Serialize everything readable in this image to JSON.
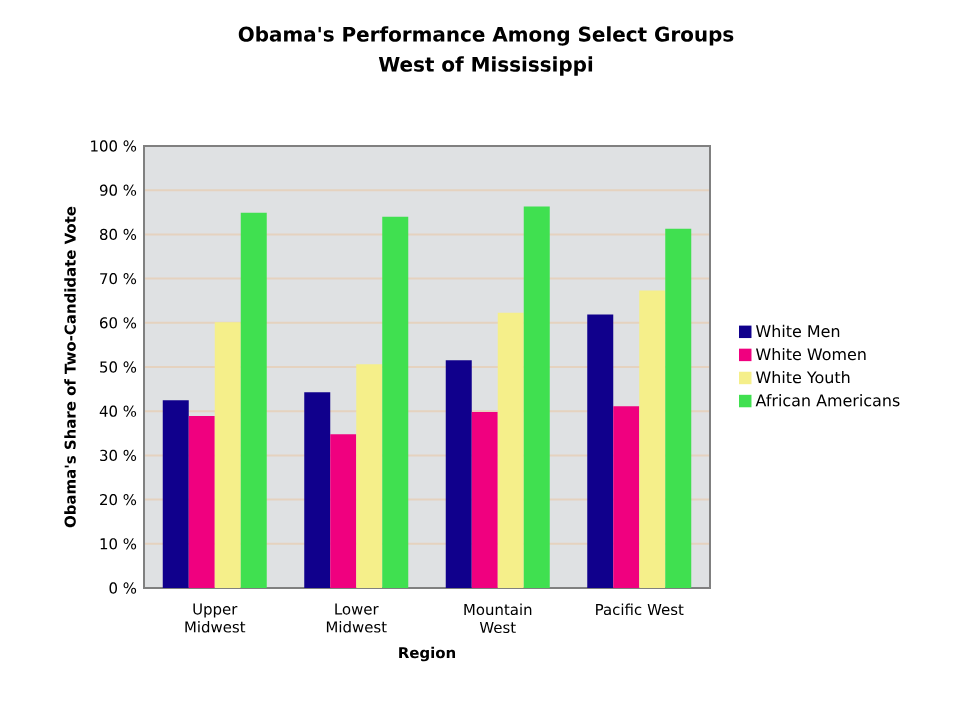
{
  "chart_data": {
    "type": "bar",
    "title": "Obama's Performance Among Select Groups",
    "subtitle": "West of Mississippi",
    "xlabel": "Region",
    "ylabel": "Obama's Share of Two-Candidate Vote",
    "categories": [
      "Upper Midwest",
      "Lower Midwest",
      "Mountain West",
      "Pacific West"
    ],
    "series": [
      {
        "name": "White Men",
        "color": "#10008c",
        "values": [
          42.5,
          44.3,
          51.5,
          61.9
        ]
      },
      {
        "name": "White Women",
        "color": "#f0007f",
        "values": [
          38.9,
          34.8,
          39.8,
          41.1
        ]
      },
      {
        "name": "White Youth",
        "color": "#f5ef8a",
        "values": [
          60.1,
          50.6,
          62.3,
          67.3
        ]
      },
      {
        "name": "African Americans",
        "color": "#40e050",
        "values": [
          84.9,
          84.0,
          86.3,
          81.3
        ]
      }
    ],
    "ylim": [
      0,
      100
    ],
    "yticks": [
      {
        "value": 0,
        "label": "0 %"
      },
      {
        "value": 10,
        "label": "10 %"
      },
      {
        "value": 20,
        "label": "20 %"
      },
      {
        "value": 30,
        "label": "30 %"
      },
      {
        "value": 40,
        "label": "40 %"
      },
      {
        "value": 50,
        "label": "50 %"
      },
      {
        "value": 60,
        "label": "60 %"
      },
      {
        "value": 70,
        "label": "70 %"
      },
      {
        "value": 80,
        "label": "80 %"
      },
      {
        "value": 90,
        "label": "90 %"
      },
      {
        "value": 100,
        "label": "100 %"
      }
    ],
    "grid": "y",
    "legend": "right"
  }
}
